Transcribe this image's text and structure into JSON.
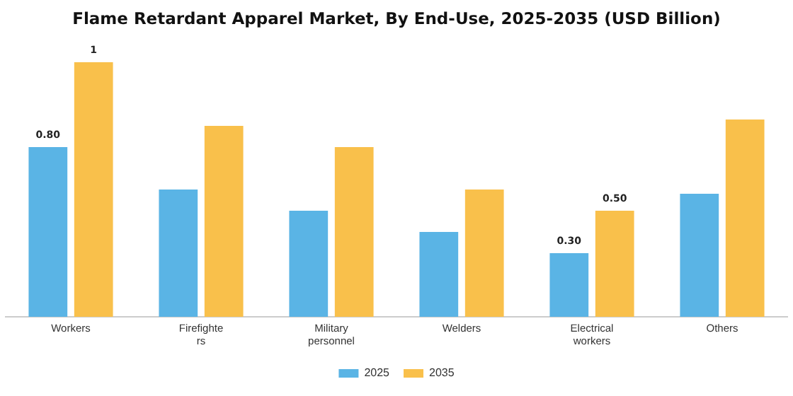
{
  "chart_data": {
    "type": "bar",
    "title": "Flame Retardant Apparel Market, By End-Use, 2025-2035 (USD Billion)",
    "categories": [
      "Workers",
      "Firefighters",
      "Military personnel",
      "Welders",
      "Electrical workers",
      "Others"
    ],
    "series": [
      {
        "name": "2025",
        "color": "#5ab4e5",
        "values": [
          0.8,
          0.6,
          0.5,
          0.4,
          0.3,
          0.58
        ],
        "value_labels": [
          "0.80",
          null,
          null,
          null,
          "0.30",
          null
        ]
      },
      {
        "name": "2035",
        "color": "#f9c04b",
        "values": [
          1.2,
          0.9,
          0.8,
          0.6,
          0.5,
          0.93
        ],
        "value_labels": [
          "1",
          null,
          null,
          null,
          "0.50",
          null
        ]
      }
    ],
    "legend": "bottom",
    "grid": false
  }
}
